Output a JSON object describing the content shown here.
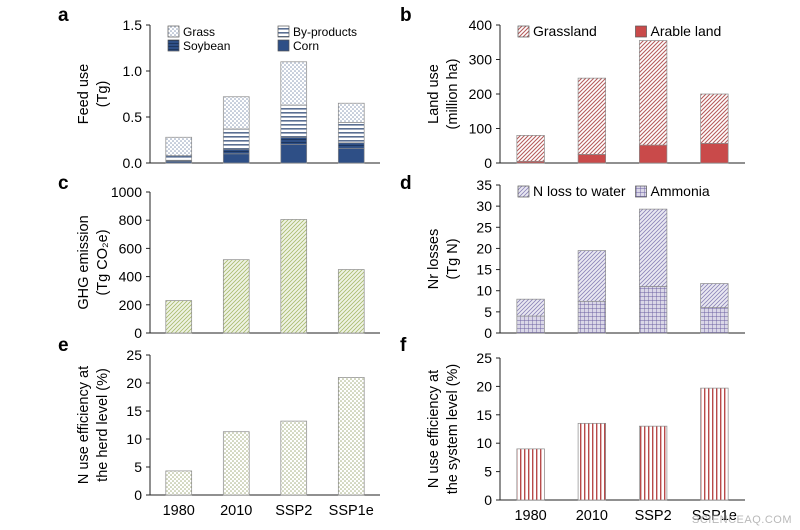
{
  "watermark": "SCIENCEAQ.COM",
  "chart_data": [
    {
      "panel": "a",
      "type": "bar",
      "stacked": true,
      "categories": [
        "1980",
        "2010",
        "SSP2",
        "SSP1e"
      ],
      "series": [
        {
          "name": "Corn",
          "values": [
            0.02,
            0.1,
            0.2,
            0.16
          ],
          "color": "#2e4f86",
          "pattern": "solid"
        },
        {
          "name": "Soybean",
          "values": [
            0.01,
            0.05,
            0.08,
            0.06
          ],
          "color": "#2e4f86",
          "pattern": "solid-dark"
        },
        {
          "name": "By-products",
          "values": [
            0.05,
            0.22,
            0.35,
            0.22
          ],
          "color": "#5a6f92",
          "pattern": "hstripe"
        },
        {
          "name": "Grass",
          "values": [
            0.2,
            0.35,
            0.47,
            0.21
          ],
          "color": "#8a9ab5",
          "pattern": "dots"
        }
      ],
      "ylabel_lines": [
        "Feed use",
        "(Tg)"
      ],
      "ylim": [
        0,
        1.5
      ],
      "yticks": [
        "0.0",
        "0.5",
        "1.0",
        "1.5"
      ],
      "legend": "top",
      "show_xlabels": false
    },
    {
      "panel": "b",
      "type": "bar",
      "stacked": true,
      "categories": [
        "1980",
        "2010",
        "SSP2",
        "SSP1e"
      ],
      "series": [
        {
          "name": "Arable land",
          "values": [
            5,
            25,
            52,
            57
          ],
          "color": "#c94a4a",
          "pattern": "solid"
        },
        {
          "name": "Grassland",
          "values": [
            75,
            221,
            303,
            143
          ],
          "color": "#b55c5c",
          "pattern": "diag"
        }
      ],
      "ylabel_lines": [
        "Land use",
        "(million ha)"
      ],
      "ylim": [
        0,
        400
      ],
      "yticks": [
        "0",
        "100",
        "200",
        "300",
        "400"
      ],
      "legend": "top",
      "show_xlabels": false
    },
    {
      "panel": "c",
      "type": "bar",
      "stacked": false,
      "categories": [
        "1980",
        "2010",
        "SSP2",
        "SSP1e"
      ],
      "series": [
        {
          "name": "",
          "values": [
            230,
            520,
            805,
            450
          ],
          "color": "#a9bb6d",
          "pattern": "diag-light"
        }
      ],
      "ylabel_lines": [
        "GHG emission",
        "(Tg CO₂e)"
      ],
      "ylim": [
        0,
        1000
      ],
      "yticks": [
        "0",
        "200",
        "400",
        "600",
        "800",
        "1000"
      ],
      "legend": "none",
      "show_xlabels": false
    },
    {
      "panel": "d",
      "type": "bar",
      "stacked": true,
      "categories": [
        "1980",
        "2010",
        "SSP2",
        "SSP1e"
      ],
      "series": [
        {
          "name": "Ammonia",
          "values": [
            4,
            7.5,
            11,
            6
          ],
          "color": "#6a5fa0",
          "pattern": "grid"
        },
        {
          "name": "N loss to water",
          "values": [
            4,
            12,
            18.3,
            5.7
          ],
          "color": "#8c84b8",
          "pattern": "diag-light"
        }
      ],
      "ylabel_lines": [
        "Nr losses",
        "(Tg N)"
      ],
      "ylim": [
        0,
        35
      ],
      "yticks": [
        "0",
        "5",
        "10",
        "15",
        "20",
        "25",
        "30",
        "35"
      ],
      "legend": "top",
      "show_xlabels": false
    },
    {
      "panel": "e",
      "type": "bar",
      "stacked": false,
      "categories": [
        "1980",
        "2010",
        "SSP2",
        "SSP1e"
      ],
      "series": [
        {
          "name": "",
          "values": [
            4.3,
            11.3,
            13.2,
            21
          ],
          "color": "#a3ad7e",
          "pattern": "dots"
        }
      ],
      "ylabel_lines": [
        "N use efficiency at",
        "the herd level (%)"
      ],
      "ylim": [
        0,
        25
      ],
      "yticks": [
        "0",
        "5",
        "10",
        "15",
        "20",
        "25"
      ],
      "legend": "none",
      "show_xlabels": true
    },
    {
      "panel": "f",
      "type": "bar",
      "stacked": false,
      "categories": [
        "1980",
        "2010",
        "SSP2",
        "SSP1e"
      ],
      "series": [
        {
          "name": "",
          "values": [
            9,
            13.5,
            13,
            19.7
          ],
          "color": "#b84a4a",
          "pattern": "vstripe"
        }
      ],
      "ylabel_lines": [
        "N use efficiency at",
        "the system level (%)"
      ],
      "ylim": [
        0,
        25
      ],
      "yticks": [
        "0",
        "5",
        "10",
        "15",
        "20",
        "25"
      ],
      "legend": "none",
      "show_xlabels": true
    }
  ]
}
